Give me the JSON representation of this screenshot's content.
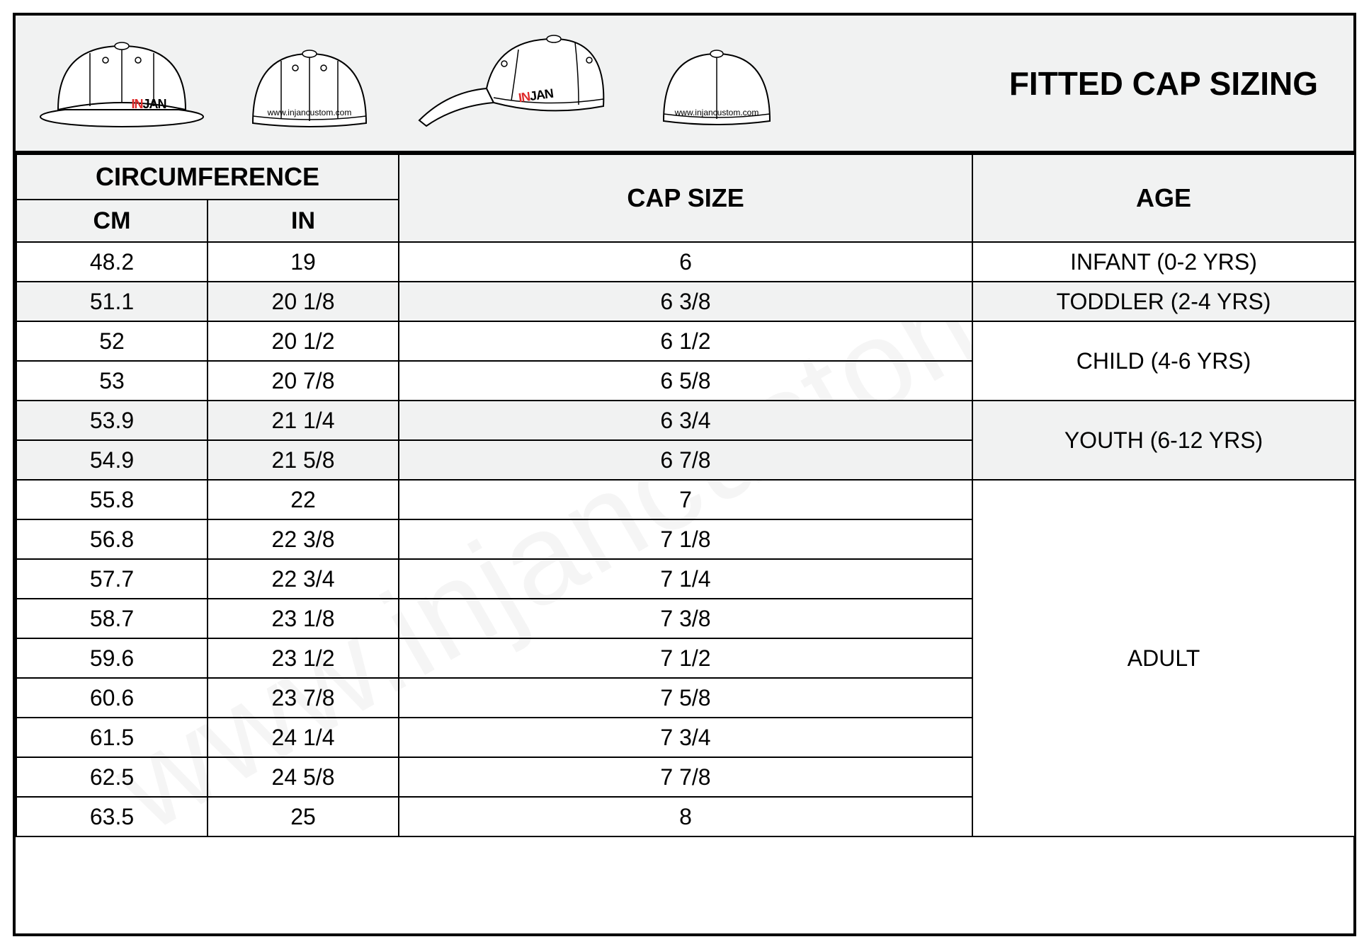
{
  "watermark": "www.injancustom.com",
  "title": "FITTED CAP SIZING",
  "url": "www.injancustom.com",
  "logo": {
    "part1": "IN",
    "part2": "JAN"
  },
  "headers": {
    "circumference": "CIRCUMFERENCE",
    "cm": "CM",
    "in": "IN",
    "cap_size": "CAP SIZE",
    "age": "AGE"
  },
  "rows": [
    {
      "cm": "48.2",
      "in": "19",
      "cap": "6",
      "alt": false
    },
    {
      "cm": "51.1",
      "in": "20 1/8",
      "cap": "6 3/8",
      "alt": true
    },
    {
      "cm": "52",
      "in": "20 1/2",
      "cap": "6 1/2",
      "alt": false
    },
    {
      "cm": "53",
      "in": "20 7/8",
      "cap": "6 5/8",
      "alt": false
    },
    {
      "cm": "53.9",
      "in": "21 1/4",
      "cap": "6 3/4",
      "alt": true
    },
    {
      "cm": "54.9",
      "in": "21 5/8",
      "cap": "6 7/8",
      "alt": true
    },
    {
      "cm": "55.8",
      "in": "22",
      "cap": "7",
      "alt": false
    },
    {
      "cm": "56.8",
      "in": "22 3/8",
      "cap": "7 1/8",
      "alt": false
    },
    {
      "cm": "57.7",
      "in": "22 3/4",
      "cap": "7 1/4",
      "alt": false
    },
    {
      "cm": "58.7",
      "in": "23 1/8",
      "cap": "7 3/8",
      "alt": false
    },
    {
      "cm": "59.6",
      "in": "23 1/2",
      "cap": "7 1/2",
      "alt": false
    },
    {
      "cm": "60.6",
      "in": "23 7/8",
      "cap": "7 5/8",
      "alt": false
    },
    {
      "cm": "61.5",
      "in": "24 1/4",
      "cap": "7 3/4",
      "alt": false
    },
    {
      "cm": "62.5",
      "in": "24 5/8",
      "cap": "7 7/8",
      "alt": false
    },
    {
      "cm": "63.5",
      "in": "25",
      "cap": "8",
      "alt": false
    }
  ],
  "age_groups": [
    {
      "label": "INFANT (0-2 YRS)",
      "rowspan": 1,
      "start": 0,
      "alt": false
    },
    {
      "label": "TODDLER (2-4 YRS)",
      "rowspan": 1,
      "start": 1,
      "alt": true
    },
    {
      "label": "CHILD (4-6 YRS)",
      "rowspan": 2,
      "start": 2,
      "alt": false
    },
    {
      "label": "YOUTH (6-12 YRS)",
      "rowspan": 2,
      "start": 4,
      "alt": true
    },
    {
      "label": "ADULT",
      "rowspan": 9,
      "start": 6,
      "alt": false
    }
  ],
  "colors": {
    "border": "#000000",
    "bg": "#ffffff",
    "header_bg": "#f1f2f2",
    "alt_bg": "#f1f2f2",
    "text": "#000000",
    "logo_red": "#de2a2a"
  }
}
